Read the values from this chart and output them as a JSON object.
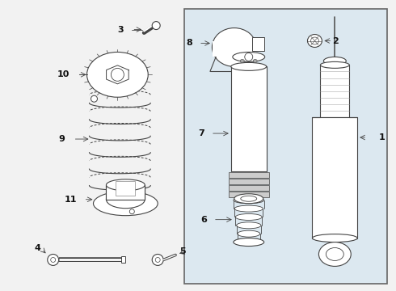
{
  "bg_color": "#f2f2f2",
  "box_bg": "#dce8f0",
  "line_color": "#444444",
  "label_color": "#111111",
  "figsize": [
    4.9,
    3.6
  ],
  "dpi": 100
}
